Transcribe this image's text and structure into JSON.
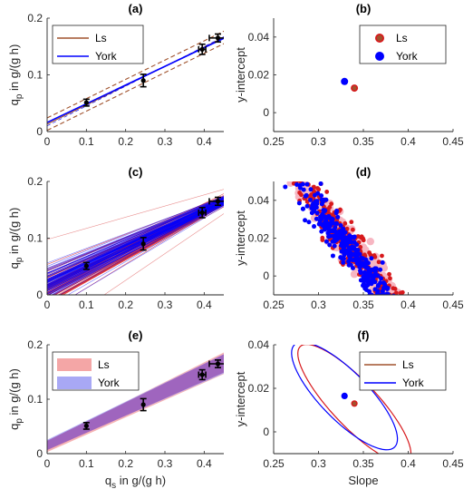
{
  "colors": {
    "ls": "#a0522d",
    "ls_red": "#d7191c",
    "york": "#0000ff",
    "ls_fill": "#f4a6a6",
    "york_fill": "#a8a8f5",
    "overlap": "#9b59b6",
    "errorbar": "#000000",
    "axis": "#262626"
  },
  "chart_data": [
    {
      "panel": "a",
      "title": "(a)",
      "type": "line",
      "xlabel": "",
      "ylabel": "q_p in g/(g h)",
      "xlim": [
        0,
        0.45
      ],
      "ylim": [
        0,
        0.2
      ],
      "xticks": [
        "0",
        "0.1",
        "0.2",
        "0.3",
        "0.4"
      ],
      "yticks": [
        "0",
        "0.1",
        "0.2"
      ],
      "legend": {
        "position": "top-left",
        "entries": [
          "Ls",
          "York"
        ]
      },
      "series": [
        {
          "name": "Ls",
          "slope": 0.34,
          "intercept": 0.013,
          "band": 0.011
        },
        {
          "name": "York",
          "slope": 0.33,
          "intercept": 0.016
        }
      ],
      "points": [
        {
          "x": 0.1,
          "y": 0.051,
          "yerr": 0.006,
          "xerr": 0.0
        },
        {
          "x": 0.245,
          "y": 0.09,
          "yerr": 0.011,
          "xerr": 0.0
        },
        {
          "x": 0.395,
          "y": 0.145,
          "yerr": 0.009,
          "xerr": 0.009
        },
        {
          "x": 0.435,
          "y": 0.165,
          "yerr": 0.007,
          "xerr": 0.022
        }
      ]
    },
    {
      "panel": "b",
      "title": "(b)",
      "type": "scatter",
      "xlabel": "",
      "ylabel": "y-intercept",
      "xlim": [
        0.25,
        0.45
      ],
      "ylim": [
        -0.01,
        0.05
      ],
      "xticks": [
        "0.25",
        "0.3",
        "0.35",
        "0.4",
        "0.45"
      ],
      "yticks": [
        "0",
        "0.02",
        "0.04"
      ],
      "legend": {
        "position": "top-right",
        "entries": [
          "Ls",
          "York"
        ]
      },
      "series": [
        {
          "name": "Ls",
          "x": [
            0.34
          ],
          "y": [
            0.013
          ]
        },
        {
          "name": "York",
          "x": [
            0.329
          ],
          "y": [
            0.0165
          ]
        }
      ]
    },
    {
      "panel": "c",
      "title": "(c)",
      "type": "line",
      "xlabel": "",
      "ylabel": "q_p in g/(g h)",
      "xlim": [
        0,
        0.45
      ],
      "ylim": [
        0,
        0.2
      ],
      "xticks": [
        "0",
        "0.1",
        "0.2",
        "0.3",
        "0.4"
      ],
      "yticks": [
        "0",
        "0.1",
        "0.2"
      ],
      "points": [
        {
          "x": 0.1,
          "y": 0.051,
          "yerr": 0.006,
          "xerr": 0.0
        },
        {
          "x": 0.245,
          "y": 0.09,
          "yerr": 0.011,
          "xerr": 0.0
        },
        {
          "x": 0.395,
          "y": 0.145,
          "yerr": 0.009,
          "xerr": 0.009
        },
        {
          "x": 0.435,
          "y": 0.165,
          "yerr": 0.007,
          "xerr": 0.022
        }
      ]
    },
    {
      "panel": "d",
      "title": "(d)",
      "type": "scatter",
      "xlabel": "",
      "ylabel": "y-intercept",
      "xlim": [
        0.25,
        0.45
      ],
      "ylim": [
        -0.01,
        0.05
      ],
      "xticks": [
        "0.25",
        "0.3",
        "0.35",
        "0.4",
        "0.45"
      ],
      "yticks": [
        "0",
        "0.02",
        "0.04"
      ]
    },
    {
      "panel": "e",
      "title": "(e)",
      "type": "area",
      "xlabel": "q_s in g/(g h)",
      "ylabel": "q_p in g/(g h)",
      "xlim": [
        0,
        0.45
      ],
      "ylim": [
        0,
        0.2
      ],
      "xticks": [
        "0",
        "0.1",
        "0.2",
        "0.3",
        "0.4"
      ],
      "yticks": [
        "0",
        "0.1",
        "0.2"
      ],
      "legend": {
        "position": "top-left",
        "entries": [
          "Ls",
          "York"
        ]
      },
      "points": [
        {
          "x": 0.1,
          "y": 0.051,
          "yerr": 0.006,
          "xerr": 0.0
        },
        {
          "x": 0.245,
          "y": 0.09,
          "yerr": 0.011,
          "xerr": 0.0
        },
        {
          "x": 0.395,
          "y": 0.145,
          "yerr": 0.009,
          "xerr": 0.009
        },
        {
          "x": 0.435,
          "y": 0.165,
          "yerr": 0.007,
          "xerr": 0.022
        }
      ]
    },
    {
      "panel": "f",
      "title": "(f)",
      "type": "scatter",
      "xlabel": "Slope",
      "ylabel": "y-intercept",
      "xlim": [
        0.25,
        0.45
      ],
      "ylim": [
        -0.01,
        0.04
      ],
      "xticks": [
        "0.25",
        "0.3",
        "0.35",
        "0.4",
        "0.45"
      ],
      "yticks": [
        "0",
        "0.02",
        "0.04"
      ],
      "legend": {
        "position": "top-right",
        "entries": [
          "Ls",
          "York"
        ]
      },
      "series": [
        {
          "name": "Ls",
          "x": [
            0.34
          ],
          "y": [
            0.013
          ]
        },
        {
          "name": "York",
          "x": [
            0.329
          ],
          "y": [
            0.0165
          ]
        }
      ]
    }
  ]
}
